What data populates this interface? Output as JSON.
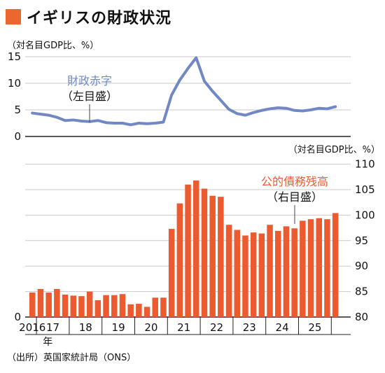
{
  "title": "イギリスの財政状況",
  "source": "（出所）英国家統計局（ONS）",
  "colors": {
    "accent": "#ec6630",
    "deficit_line": "#7188c4",
    "bars": "#ec5a30",
    "axis": "#222222",
    "grid": "#c9c9c9"
  },
  "chart_data": [
    {
      "type": "line",
      "unit_label": "（対名目GDP比、%）",
      "y_ticks": [
        "15",
        "10",
        "5",
        "0"
      ],
      "ylim": [
        0,
        15
      ],
      "annotation": [
        "財政赤字",
        "（左目盛）"
      ],
      "series": [
        {
          "name": "財政赤字",
          "values": [
            4.4,
            4.2,
            4.0,
            3.6,
            3.0,
            3.1,
            2.9,
            2.8,
            3.0,
            2.6,
            2.5,
            2.5,
            2.2,
            2.5,
            2.4,
            2.5,
            2.7,
            7.8,
            10.6,
            12.8,
            14.8,
            10.4,
            8.5,
            6.8,
            5.1,
            4.3,
            4.0,
            4.5,
            4.9,
            5.2,
            5.4,
            5.3,
            4.9,
            4.8,
            5.0,
            5.3,
            5.2,
            5.6
          ]
        }
      ]
    },
    {
      "type": "bar",
      "unit_label": "（対名目GDP比、%）",
      "y_ticks": [
        "110",
        "105",
        "100",
        "95",
        "90",
        "85",
        "80"
      ],
      "ylim": [
        80,
        110
      ],
      "annotation": [
        "公的債務残高",
        "（右目盛）"
      ],
      "left_axis_zero": "0",
      "x_labels": [
        "2016",
        "17",
        "18",
        "19",
        "20",
        "21",
        "22",
        "23",
        "24",
        "25"
      ],
      "x_sub_label": "年",
      "series": [
        {
          "name": "公的債務残高",
          "values": [
            84.8,
            85.5,
            84.8,
            85.5,
            84.4,
            84.2,
            84.1,
            85.0,
            83.3,
            84.3,
            84.3,
            84.5,
            82.5,
            82.6,
            82.0,
            83.8,
            83.8,
            97.3,
            102.3,
            106.0,
            106.8,
            105.2,
            103.8,
            103.6,
            98.1,
            97.1,
            96.0,
            96.6,
            96.4,
            98.1,
            96.9,
            97.8,
            97.4,
            98.9,
            99.2,
            99.4,
            99.2,
            100.4
          ]
        }
      ]
    }
  ]
}
